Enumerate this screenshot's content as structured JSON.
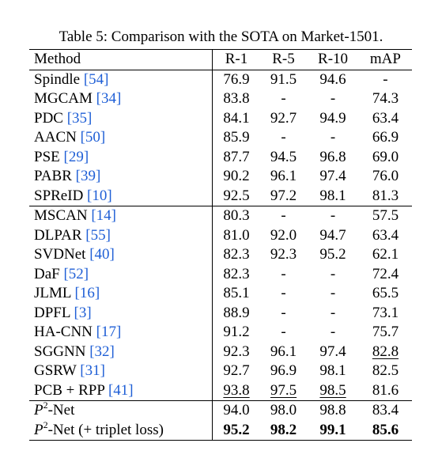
{
  "caption": "Table 5: Comparison with the SOTA on Market-1501.",
  "columns": [
    "Method",
    "R-1",
    "R-5",
    "R-10",
    "mAP"
  ],
  "rows": [
    {
      "name": "Spindle",
      "cite": "[54]",
      "r1": "76.9",
      "r5": "91.5",
      "r10": "94.6",
      "map": "-"
    },
    {
      "name": "MGCAM",
      "cite": "[34]",
      "r1": "83.8",
      "r5": "-",
      "r10": "-",
      "map": "74.3"
    },
    {
      "name": "PDC",
      "cite": "[35]",
      "r1": "84.1",
      "r5": "92.7",
      "r10": "94.9",
      "map": "63.4"
    },
    {
      "name": "AACN",
      "cite": "[50]",
      "r1": "85.9",
      "r5": "-",
      "r10": "-",
      "map": "66.9"
    },
    {
      "name": "PSE",
      "cite": "[29]",
      "r1": "87.7",
      "r5": "94.5",
      "r10": "96.8",
      "map": "69.0"
    },
    {
      "name": "PABR",
      "cite": "[39]",
      "r1": "90.2",
      "r5": "96.1",
      "r10": "97.4",
      "map": "76.0"
    },
    {
      "name": "SPReID",
      "cite": "[10]",
      "r1": "92.5",
      "r5": "97.2",
      "r10": "98.1",
      "map": "81.3"
    },
    {
      "name": "MSCAN",
      "cite": "[14]",
      "r1": "80.3",
      "r5": "-",
      "r10": "-",
      "map": "57.5"
    },
    {
      "name": "DLPAR",
      "cite": "[55]",
      "r1": "81.0",
      "r5": "92.0",
      "r10": "94.7",
      "map": "63.4"
    },
    {
      "name": "SVDNet",
      "cite": "[40]",
      "r1": "82.3",
      "r5": "92.3",
      "r10": "95.2",
      "map": "62.1"
    },
    {
      "name": "DaF",
      "cite": "[52]",
      "r1": "82.3",
      "r5": "-",
      "r10": "-",
      "map": "72.4"
    },
    {
      "name": "JLML",
      "cite": "[16]",
      "r1": "85.1",
      "r5": "-",
      "r10": "-",
      "map": "65.5"
    },
    {
      "name": "DPFL",
      "cite": "[3]",
      "r1": "88.9",
      "r5": "-",
      "r10": "-",
      "map": "73.1"
    },
    {
      "name": "HA-CNN",
      "cite": "[17]",
      "r1": "91.2",
      "r5": "-",
      "r10": "-",
      "map": "75.7"
    },
    {
      "name": "SGGNN",
      "cite": "[32]",
      "r1": "92.3",
      "r5": "96.1",
      "r10": "97.4",
      "map": "82.8"
    },
    {
      "name": "GSRW",
      "cite": "[31]",
      "r1": "92.7",
      "r5": "96.9",
      "r10": "98.1",
      "map": "82.5"
    },
    {
      "name": "PCB + RPP",
      "cite": "[41]",
      "r1": "93.8",
      "r5": "97.5",
      "r10": "98.5",
      "map": "81.6"
    }
  ],
  "ours": [
    {
      "name_prefix": "P",
      "sup": "2",
      "name_suffix": "-Net",
      "r1": "94.0",
      "r5": "98.0",
      "r10": "98.8",
      "map": "83.4"
    },
    {
      "name_prefix": "P",
      "sup": "2",
      "name_suffix": "-Net (+ triplet loss)",
      "r1": "95.2",
      "r5": "98.2",
      "r10": "99.1",
      "map": "85.6"
    }
  ],
  "colors": {
    "citation": "#1f5fd6"
  }
}
